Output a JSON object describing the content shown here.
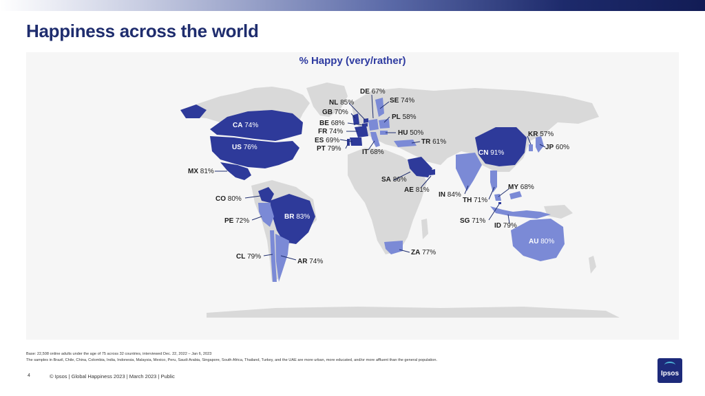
{
  "page": {
    "title": "Happiness across the world",
    "subtitle": "% Happy (very/rather)"
  },
  "colors": {
    "dark": "#2e3a9a",
    "light": "#7b8ad6",
    "land": "#d9d9d9",
    "panel": "#f6f6f6",
    "title": "#1f2d6e"
  },
  "countries": [
    {
      "code": "DE",
      "value": "67%"
    },
    {
      "code": "SE",
      "value": "74%"
    },
    {
      "code": "NL",
      "value": "85%"
    },
    {
      "code": "GB",
      "value": "70%"
    },
    {
      "code": "PL",
      "value": "58%"
    },
    {
      "code": "BE",
      "value": "68%"
    },
    {
      "code": "FR",
      "value": "74%"
    },
    {
      "code": "HU",
      "value": "50%"
    },
    {
      "code": "ES",
      "value": "69%"
    },
    {
      "code": "TR",
      "value": "61%"
    },
    {
      "code": "PT",
      "value": "79%"
    },
    {
      "code": "IT",
      "value": "68%"
    },
    {
      "code": "CA",
      "value": "74%"
    },
    {
      "code": "US",
      "value": "76%"
    },
    {
      "code": "MX",
      "value": "81%"
    },
    {
      "code": "CO",
      "value": "80%"
    },
    {
      "code": "PE",
      "value": "72%"
    },
    {
      "code": "BR",
      "value": "83%"
    },
    {
      "code": "CL",
      "value": "79%"
    },
    {
      "code": "AR",
      "value": "74%"
    },
    {
      "code": "SA",
      "value": "86%"
    },
    {
      "code": "AE",
      "value": "81%"
    },
    {
      "code": "IN",
      "value": "84%"
    },
    {
      "code": "TH",
      "value": "71%"
    },
    {
      "code": "SG",
      "value": "71%"
    },
    {
      "code": "ID",
      "value": "79%"
    },
    {
      "code": "MY",
      "value": "68%"
    },
    {
      "code": "CN",
      "value": "91%"
    },
    {
      "code": "KR",
      "value": "57%"
    },
    {
      "code": "JP",
      "value": "60%"
    },
    {
      "code": "AU",
      "value": "80%"
    },
    {
      "code": "ZA",
      "value": "77%"
    }
  ],
  "notes": {
    "base": "Base: 22,508 online adults under the age of 75 across 32 countries, interviewed Dec. 22, 2022 – Jan 6, 2023",
    "samples": "The samples in Brazil, Chile, China, Colombia, India, Indonesia, Malaysia, Mexico, Peru, Saudi Arabia, Singapore, South Africa, Thailand, Turkey, and the UAE are more urban, more educated, and/or more affluent than the general population."
  },
  "footer": {
    "page_number": "4",
    "text": "© Ipsos | Global Happiness 2023 | March 2023 | Public",
    "logo_text": "Ipsos"
  }
}
